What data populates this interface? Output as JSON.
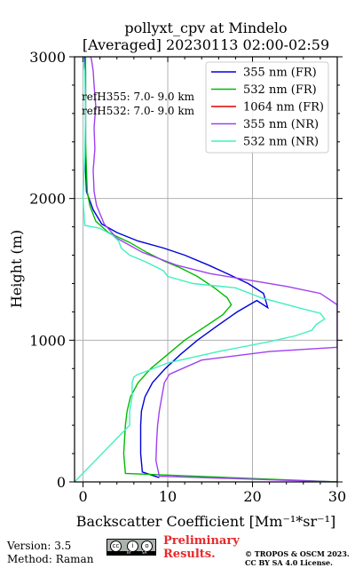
{
  "title_line1": "pollyxt_cpv at Mindelo",
  "title_line2": "[Averaged] 20230113 02:00-02:59",
  "footer": {
    "version": "Version: 3.5",
    "method": "Method: Raman",
    "preliminary_line1": "Preliminary",
    "preliminary_line2": "Results.",
    "copyright_line1": "© TROPOS & OSCM 2023.",
    "copyright_line2": "CC BY SA 4.0 License.",
    "license_badge": {
      "symbols": [
        "cc",
        "i",
        "o"
      ],
      "tags": [
        "BY",
        "SA"
      ]
    }
  },
  "chart_data": {
    "type": "line",
    "xlabel": "Backscatter Coefficient [Mm⁻¹*sr⁻¹]",
    "ylabel": "Height (m)",
    "xlim": [
      -1,
      30
    ],
    "ylim": [
      0,
      3000
    ],
    "xticks": [
      0,
      10,
      20,
      30
    ],
    "yticks": [
      0,
      1000,
      2000,
      3000
    ],
    "grid": true,
    "legend_position": "top-right",
    "annotations": [
      "refH355:  7.0- 9.0 km",
      "refH532:  7.0- 9.0 km"
    ],
    "series": [
      {
        "name": "355 nm (FR)",
        "color": "#0000dd",
        "x": [
          9.0,
          7.0,
          6.8,
          6.8,
          6.9,
          7.3,
          8.2,
          9.7,
          11.5,
          13.5,
          15.8,
          18.2,
          20.5,
          21.8,
          21.3,
          19.5,
          17.0,
          14.8,
          12.0,
          9.5,
          6.5,
          4.0,
          2.2,
          1.2,
          0.4,
          0.3,
          0.3,
          0.3,
          0.3,
          0.3,
          0.3,
          0.2
        ],
        "y": [
          30,
          70,
          200,
          400,
          500,
          600,
          700,
          800,
          900,
          1000,
          1100,
          1200,
          1280,
          1230,
          1330,
          1400,
          1470,
          1530,
          1600,
          1650,
          1700,
          1760,
          1820,
          1920,
          2050,
          2200,
          2300,
          2400,
          2500,
          2700,
          2900,
          3000
        ]
      },
      {
        "name": "532 nm (FR)",
        "color": "#00bb00",
        "x": [
          30,
          5.0,
          4.8,
          5.0,
          5.2,
          5.6,
          6.5,
          8.0,
          10.0,
          12.0,
          14.5,
          16.5,
          17.5,
          17.0,
          15.5,
          13.5,
          11.5,
          9.5,
          7.5,
          5.5,
          3.0,
          1.5,
          0.8,
          0.5,
          0.4,
          0.3,
          0.3,
          0.3,
          0.3
        ],
        "y": [
          0,
          60,
          200,
          400,
          500,
          600,
          700,
          800,
          900,
          1000,
          1100,
          1180,
          1250,
          1300,
          1370,
          1450,
          1510,
          1560,
          1620,
          1690,
          1760,
          1840,
          1950,
          2050,
          2200,
          2400,
          2600,
          2800,
          3000
        ]
      },
      {
        "name": "1064 nm (FR)",
        "color": "#dd0000",
        "x": [],
        "y": []
      },
      {
        "name": "355 nm (NR)",
        "color": "#a040f0",
        "x": [
          30,
          9.0,
          8.6,
          8.7,
          8.8,
          9.0,
          9.3,
          9.6,
          10.2,
          14.0,
          22.0,
          30.0,
          30.0,
          28.0,
          24.0,
          19.0,
          15.0,
          11.0,
          7.0,
          4.0,
          2.5,
          1.6,
          1.3,
          1.2,
          1.4,
          1.3,
          1.5,
          1.3,
          1.2,
          1.0,
          0.9
        ],
        "y": [
          0,
          40,
          150,
          300,
          400,
          500,
          600,
          700,
          760,
          860,
          920,
          950,
          1250,
          1330,
          1380,
          1430,
          1470,
          1530,
          1620,
          1720,
          1820,
          1950,
          2050,
          2200,
          2350,
          2500,
          2650,
          2800,
          2900,
          2980,
          3000
        ]
      },
      {
        "name": "532 nm (NR)",
        "color": "#40f0c0",
        "x": [
          -1,
          5.5,
          5.5,
          5.8,
          5.8,
          6.0,
          6.5,
          7.0,
          10.0,
          16.0,
          22.0,
          25.0,
          27.0,
          27.5,
          28.5,
          28.0,
          26.0,
          21.0,
          18.0,
          13.0,
          10.0,
          9.5,
          7.5,
          5.5,
          4.5,
          4.2,
          3.5,
          2.0,
          0.2,
          0.0,
          0.2,
          0.3,
          0.2,
          0.0,
          0.1
        ],
        "y": [
          0,
          400,
          500,
          600,
          700,
          740,
          760,
          770,
          840,
          920,
          990,
          1030,
          1070,
          1110,
          1150,
          1190,
          1220,
          1300,
          1370,
          1400,
          1450,
          1490,
          1550,
          1600,
          1650,
          1700,
          1740,
          1790,
          1810,
          2000,
          2300,
          2600,
          2900,
          2980,
          3000
        ]
      }
    ]
  }
}
